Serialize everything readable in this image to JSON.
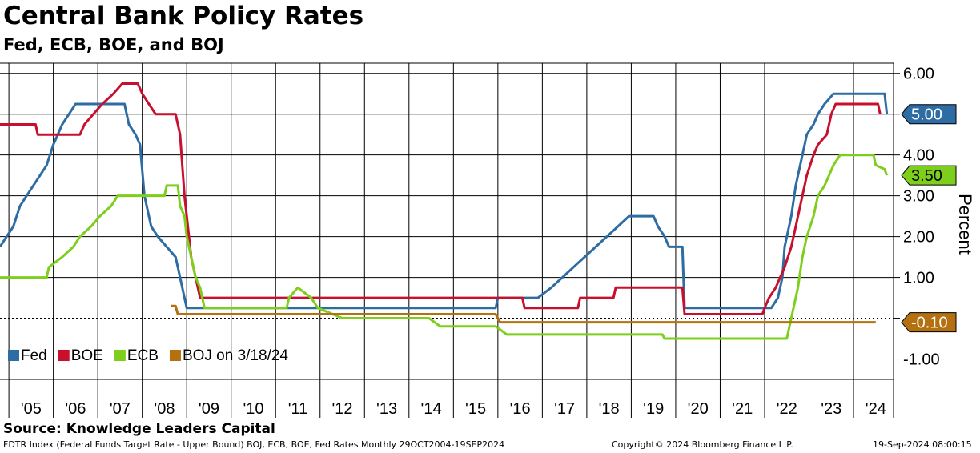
{
  "header": {
    "title": "Central Bank Policy Rates",
    "subtitle": "Fed, ECB, BOE, and BOJ"
  },
  "footer": {
    "source": "Source: Knowledge Leaders Capital",
    "description": "FDTR Index (Federal Funds Target Rate - Upper Bound) BOJ, ECB, BOE, Fed Rates  Monthly 29OCT2004-19SEP2024",
    "copyright": "Copyright© 2024 Bloomberg Finance L.P.",
    "timestamp": "19-Sep-2024 08:00:15"
  },
  "chart_data": {
    "type": "line",
    "title": "Central Bank Policy Rates",
    "subtitle": "Fed, ECB, BOE, and BOJ",
    "ylabel": "Percent",
    "xlim": [
      2004.8,
      2024.9
    ],
    "ylim": [
      -1.5,
      6.25
    ],
    "yticks": [
      -1,
      0,
      1,
      2,
      3,
      4,
      5,
      6
    ],
    "ytick_labels": [
      "-1.00",
      "",
      "1.00",
      "2.00",
      "3.00",
      "4.00",
      "5.00",
      "6.00"
    ],
    "xtick_labels": [
      "'05",
      "'06",
      "'07",
      "'08",
      "'09",
      "'10",
      "'11",
      "'12",
      "'13",
      "'14",
      "'15",
      "'16",
      "'17",
      "'18",
      "'19",
      "'20",
      "'21",
      "'22",
      "'23",
      "'24"
    ],
    "grid": true,
    "legend_position": "bottom-left",
    "colors": {
      "Fed": "#2e6da4",
      "BOE": "#c8102e",
      "ECB": "#7dcf1c",
      "BOJ": "#b5700f"
    },
    "series": [
      {
        "name": "Fed",
        "points": [
          [
            2004.8,
            1.75
          ],
          [
            2004.95,
            2.0
          ],
          [
            2005.1,
            2.25
          ],
          [
            2005.25,
            2.75
          ],
          [
            2005.4,
            3.0
          ],
          [
            2005.55,
            3.25
          ],
          [
            2005.7,
            3.5
          ],
          [
            2005.85,
            3.75
          ],
          [
            2006.0,
            4.25
          ],
          [
            2006.2,
            4.75
          ],
          [
            2006.35,
            5.0
          ],
          [
            2006.5,
            5.25
          ],
          [
            2007.6,
            5.25
          ],
          [
            2007.7,
            4.75
          ],
          [
            2007.85,
            4.5
          ],
          [
            2007.95,
            4.25
          ],
          [
            2008.05,
            3.0
          ],
          [
            2008.2,
            2.25
          ],
          [
            2008.35,
            2.0
          ],
          [
            2008.75,
            1.5
          ],
          [
            2008.85,
            1.0
          ],
          [
            2009.0,
            0.25
          ],
          [
            2015.95,
            0.25
          ],
          [
            2016.0,
            0.5
          ],
          [
            2016.9,
            0.5
          ],
          [
            2017.2,
            0.75
          ],
          [
            2017.45,
            1.0
          ],
          [
            2017.7,
            1.25
          ],
          [
            2017.95,
            1.5
          ],
          [
            2018.2,
            1.75
          ],
          [
            2018.45,
            2.0
          ],
          [
            2018.7,
            2.25
          ],
          [
            2018.95,
            2.5
          ],
          [
            2019.5,
            2.5
          ],
          [
            2019.6,
            2.25
          ],
          [
            2019.75,
            2.0
          ],
          [
            2019.85,
            1.75
          ],
          [
            2020.15,
            1.75
          ],
          [
            2020.2,
            0.25
          ],
          [
            2022.15,
            0.25
          ],
          [
            2022.3,
            0.5
          ],
          [
            2022.4,
            1.0
          ],
          [
            2022.45,
            1.75
          ],
          [
            2022.6,
            2.5
          ],
          [
            2022.7,
            3.25
          ],
          [
            2022.85,
            4.0
          ],
          [
            2022.95,
            4.5
          ],
          [
            2023.1,
            4.75
          ],
          [
            2023.2,
            5.0
          ],
          [
            2023.35,
            5.25
          ],
          [
            2023.55,
            5.5
          ],
          [
            2024.7,
            5.5
          ],
          [
            2024.75,
            5.0
          ]
        ]
      },
      {
        "name": "BOE",
        "points": [
          [
            2004.8,
            4.75
          ],
          [
            2005.6,
            4.75
          ],
          [
            2005.65,
            4.5
          ],
          [
            2006.6,
            4.5
          ],
          [
            2006.7,
            4.75
          ],
          [
            2006.9,
            5.0
          ],
          [
            2007.1,
            5.25
          ],
          [
            2007.35,
            5.5
          ],
          [
            2007.55,
            5.75
          ],
          [
            2007.9,
            5.75
          ],
          [
            2008.0,
            5.5
          ],
          [
            2008.15,
            5.25
          ],
          [
            2008.3,
            5.0
          ],
          [
            2008.75,
            5.0
          ],
          [
            2008.85,
            4.5
          ],
          [
            2008.95,
            3.0
          ],
          [
            2009.05,
            2.0
          ],
          [
            2009.1,
            1.5
          ],
          [
            2009.2,
            1.0
          ],
          [
            2009.3,
            0.5
          ],
          [
            2016.55,
            0.5
          ],
          [
            2016.6,
            0.25
          ],
          [
            2017.8,
            0.25
          ],
          [
            2017.85,
            0.5
          ],
          [
            2018.6,
            0.5
          ],
          [
            2018.65,
            0.75
          ],
          [
            2020.15,
            0.75
          ],
          [
            2020.2,
            0.1
          ],
          [
            2021.95,
            0.1
          ],
          [
            2022.0,
            0.25
          ],
          [
            2022.1,
            0.5
          ],
          [
            2022.25,
            0.75
          ],
          [
            2022.35,
            1.0
          ],
          [
            2022.45,
            1.25
          ],
          [
            2022.6,
            1.75
          ],
          [
            2022.7,
            2.25
          ],
          [
            2022.85,
            3.0
          ],
          [
            2022.95,
            3.5
          ],
          [
            2023.1,
            4.0
          ],
          [
            2023.2,
            4.25
          ],
          [
            2023.4,
            4.5
          ],
          [
            2023.5,
            5.0
          ],
          [
            2023.6,
            5.25
          ],
          [
            2024.55,
            5.25
          ],
          [
            2024.6,
            5.0
          ]
        ]
      },
      {
        "name": "ECB",
        "points": [
          [
            2004.8,
            1.0
          ],
          [
            2005.85,
            1.0
          ],
          [
            2005.9,
            1.25
          ],
          [
            2006.2,
            1.5
          ],
          [
            2006.45,
            1.75
          ],
          [
            2006.6,
            2.0
          ],
          [
            2006.85,
            2.25
          ],
          [
            2007.05,
            2.5
          ],
          [
            2007.3,
            2.75
          ],
          [
            2007.45,
            3.0
          ],
          [
            2008.5,
            3.0
          ],
          [
            2008.55,
            3.25
          ],
          [
            2008.8,
            3.25
          ],
          [
            2008.85,
            2.75
          ],
          [
            2008.95,
            2.5
          ],
          [
            2009.0,
            2.0
          ],
          [
            2009.1,
            1.5
          ],
          [
            2009.2,
            1.0
          ],
          [
            2009.3,
            0.75
          ],
          [
            2009.4,
            0.25
          ],
          [
            2011.25,
            0.25
          ],
          [
            2011.3,
            0.5
          ],
          [
            2011.5,
            0.75
          ],
          [
            2011.8,
            0.5
          ],
          [
            2011.95,
            0.25
          ],
          [
            2012.5,
            0.0
          ],
          [
            2014.45,
            0.0
          ],
          [
            2014.7,
            -0.2
          ],
          [
            2015.95,
            -0.2
          ],
          [
            2016.2,
            -0.4
          ],
          [
            2019.7,
            -0.4
          ],
          [
            2019.75,
            -0.5
          ],
          [
            2022.5,
            -0.5
          ],
          [
            2022.6,
            0.0
          ],
          [
            2022.75,
            0.75
          ],
          [
            2022.85,
            1.5
          ],
          [
            2022.95,
            2.0
          ],
          [
            2023.1,
            2.5
          ],
          [
            2023.2,
            3.0
          ],
          [
            2023.35,
            3.25
          ],
          [
            2023.45,
            3.5
          ],
          [
            2023.55,
            3.75
          ],
          [
            2023.7,
            4.0
          ],
          [
            2024.45,
            4.0
          ],
          [
            2024.5,
            3.75
          ],
          [
            2024.7,
            3.65
          ],
          [
            2024.75,
            3.5
          ]
        ]
      },
      {
        "name": "BOJ on 3/18/24",
        "points": [
          [
            2008.65,
            0.3
          ],
          [
            2008.75,
            0.3
          ],
          [
            2008.8,
            0.1
          ],
          [
            2015.95,
            0.1
          ],
          [
            2016.05,
            -0.1
          ],
          [
            2024.5,
            -0.1
          ]
        ]
      }
    ],
    "last_values": [
      {
        "series": "Fed",
        "value": 5.0,
        "label": "5.00"
      },
      {
        "series": "ECB",
        "value": 3.5,
        "label": "3.50"
      },
      {
        "series": "BOJ",
        "value": -0.1,
        "label": "-0.10"
      }
    ]
  }
}
